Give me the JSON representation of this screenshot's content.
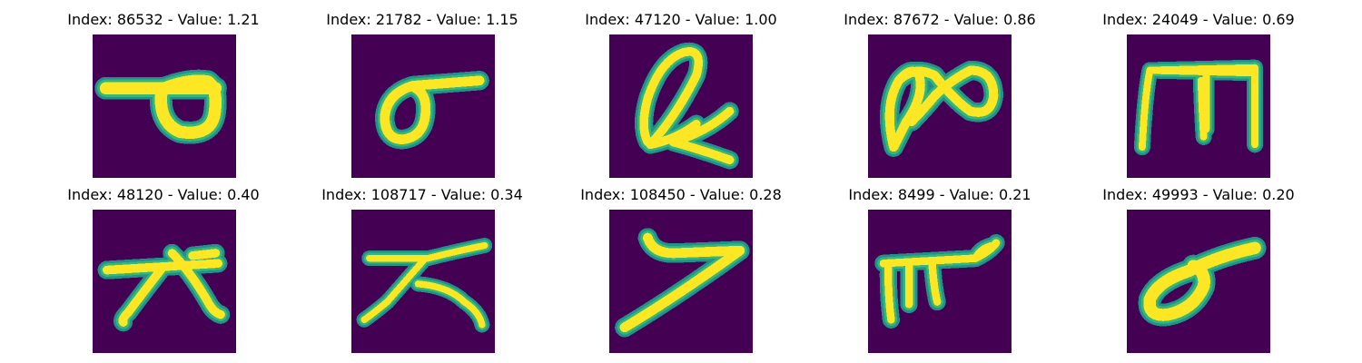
{
  "panels": [
    {
      "title": "Index: 86532 - Value: 1.21"
    },
    {
      "title": "Index: 21782 - Value: 1.15"
    },
    {
      "title": "Index: 47120 - Value: 1.00"
    },
    {
      "title": "Index: 87672 - Value: 0.86"
    },
    {
      "title": "Index: 24049 - Value: 0.69"
    },
    {
      "title": "Index: 48120 - Value: 0.40"
    },
    {
      "title": "Index: 108717 - Value: 0.34"
    },
    {
      "title": "Index: 108450 - Value: 0.28"
    },
    {
      "title": "Index: 8499 - Value: 0.21"
    },
    {
      "title": "Index: 49993 - Value: 0.20"
    }
  ],
  "colors": {
    "background": "#440154",
    "stroke_core": "#fde725",
    "stroke_edge": "#35b779",
    "stroke_outer": "#21918c"
  }
}
